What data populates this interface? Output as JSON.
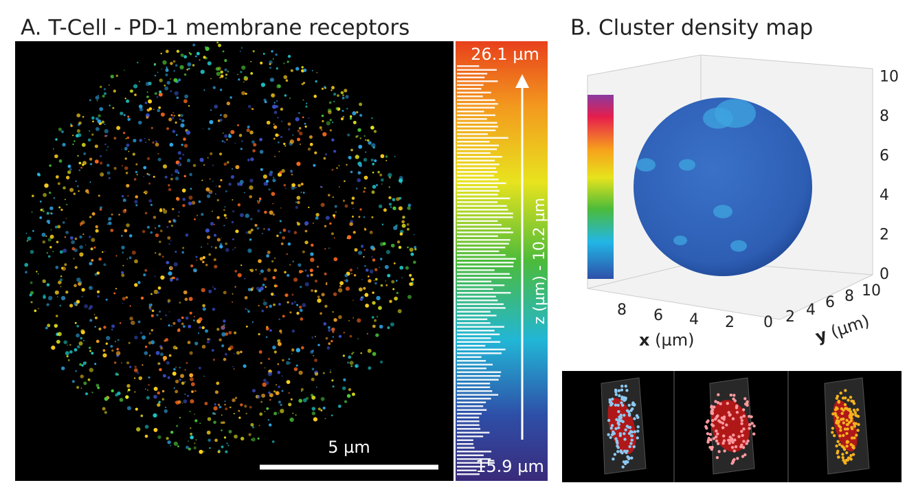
{
  "panel_a": {
    "title": "A. T-Cell - PD-1 membrane receptors",
    "scale_bar": "5 µm",
    "colorbar": {
      "max_label": "26.1 µm",
      "min_label": "15.9 µm",
      "axis_label": "z (µm) - 10.2 µm"
    }
  },
  "panel_b": {
    "title": "B. Cluster density map",
    "z_ticks": [
      0,
      2,
      4,
      6,
      8,
      10
    ],
    "x_ticks": [
      8,
      6,
      4,
      2,
      0
    ],
    "y_ticks": [
      2,
      4,
      6,
      8,
      10
    ],
    "x_label": {
      "var": "x",
      "unit": "(µm)"
    },
    "y_label": {
      "var": "y",
      "unit": "(µm)"
    }
  }
}
